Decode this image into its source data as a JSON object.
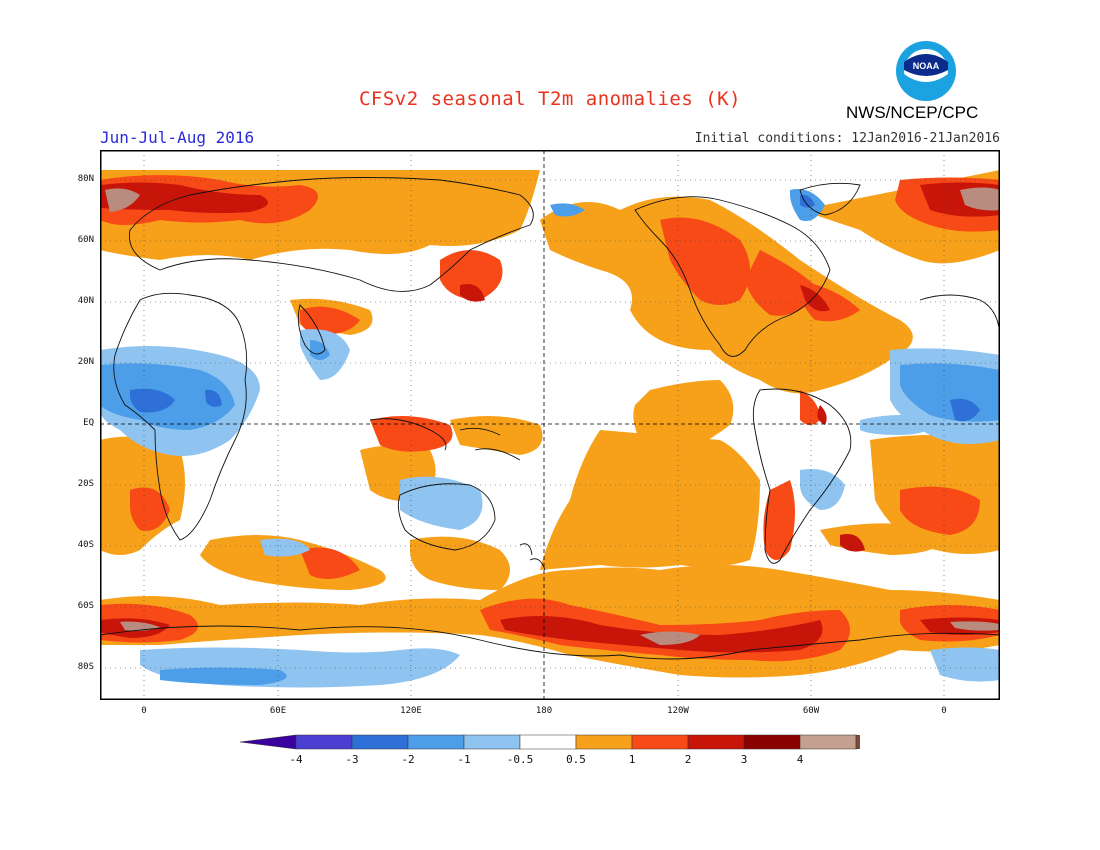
{
  "header": {
    "title": "CFSv2 seasonal T2m anomalies (K)",
    "season": "Jun-Jul-Aug 2016",
    "initial_conditions": "Initial conditions: 12Jan2016-21Jan2016",
    "agency": "NWS/NCEP/CPC",
    "logo_text": "NOAA"
  },
  "map": {
    "lat_labels": [
      "80N",
      "60N",
      "40N",
      "20N",
      "EQ",
      "20S",
      "40S",
      "60S",
      "80S"
    ],
    "lon_labels": [
      "0",
      "60E",
      "120E",
      "180",
      "120W",
      "60W",
      "0"
    ],
    "colors": {
      "neg4": "#3a00a0",
      "neg3": "#4a3fd0",
      "neg2": "#2e6fd8",
      "neg1": "#4d9ee8",
      "neg05": "#8fc3f0",
      "neutral": "#ffffff",
      "pos05": "#f7a11a",
      "pos1": "#f74a16",
      "pos2": "#d11a0a",
      "pos3": "#8b0000",
      "pos4": "#b8857a",
      "pos4max": "#7a4a3a"
    }
  },
  "colorbar": {
    "labels": [
      "-4",
      "-3",
      "-2",
      "-1",
      "-0.5",
      "0.5",
      "1",
      "2",
      "3",
      "4"
    ],
    "colors": [
      "#3a00a0",
      "#4a3fd0",
      "#2e6fd8",
      "#4d9ee8",
      "#8fc3f0",
      "#ffffff",
      "#f7a11a",
      "#f74a16",
      "#c8150a",
      "#8b0000",
      "#c4a090",
      "#7a4a3a"
    ]
  }
}
